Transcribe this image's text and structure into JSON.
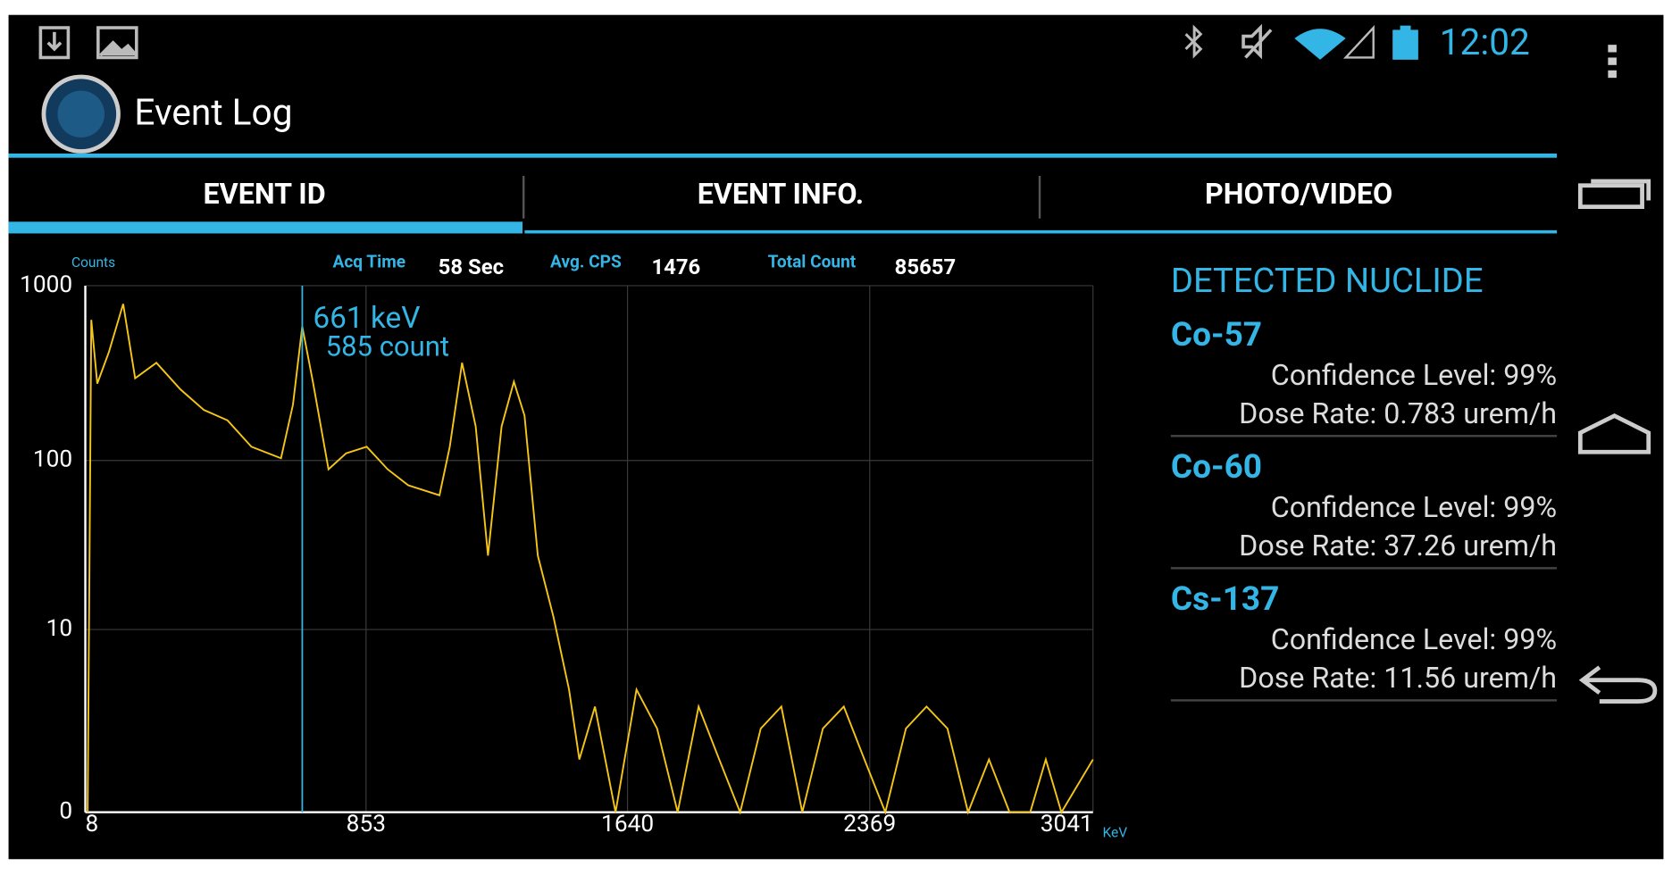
{
  "status_bar": {
    "time": "12:02"
  },
  "action_bar": {
    "title": "Event Log"
  },
  "tabs": [
    "EVENT ID",
    "EVENT INFO.",
    "PHOTO/VIDEO"
  ],
  "stats": [
    {
      "label": "Acq Time",
      "value": "58 Sec"
    },
    {
      "label": "Avg. CPS",
      "value": "1476"
    },
    {
      "label": "Total Count",
      "value": "85657"
    }
  ],
  "chart_data": {
    "type": "line",
    "y_label": "Counts",
    "x_label": "KeV",
    "x": [
      15,
      26,
      44,
      79,
      122,
      158,
      222,
      294,
      365,
      436,
      508,
      597,
      633,
      661,
      694,
      740,
      793,
      855,
      918,
      980,
      1074,
      1105,
      1142,
      1183,
      1220,
      1261,
      1298,
      1330,
      1370,
      1417,
      1464,
      1495,
      1542,
      1604,
      1667,
      1729,
      1791,
      1854,
      1916,
      1979,
      2041,
      2103,
      2166,
      2228,
      2291,
      2353,
      2416,
      2478,
      2540,
      2603,
      2665,
      2728,
      2790,
      2852,
      2899,
      2946,
      3041
    ],
    "series": [
      {
        "color": "#f5c518",
        "values": [
          0,
          638,
          276,
          418,
          787,
          296,
          363,
          256,
          195,
          170,
          120,
          103,
          209,
          585,
          276,
          89,
          110,
          120,
          89,
          72,
          63,
          120,
          363,
          157,
          28,
          157,
          283,
          181,
          28,
          12,
          4,
          1,
          3,
          0,
          4,
          2,
          0,
          3,
          1,
          0,
          2,
          3,
          0,
          2,
          3,
          1,
          0,
          2,
          3,
          2,
          0,
          1,
          0,
          0,
          1,
          0,
          1
        ]
      }
    ],
    "xlim": [
      8,
      3041
    ],
    "xticks": [
      8,
      853,
      1640,
      2369,
      3041
    ],
    "ylim": [
      0,
      1000
    ],
    "yticks": [
      0,
      10,
      100,
      1000
    ],
    "yscale": "log1p",
    "grid": true,
    "cursor": {
      "x": 661,
      "color": "#33b5e5",
      "labels": [
        "661 keV",
        "585 count"
      ]
    }
  },
  "nuclide_panel": {
    "title": "DETECTED NUCLIDE",
    "nuclides": [
      {
        "name": "Co-57",
        "confidence": "Confidence Level: 99%",
        "dose_rate": "Dose Rate: 0.783 urem/h"
      },
      {
        "name": "Co-60",
        "confidence": "Confidence Level: 99%",
        "dose_rate": "Dose Rate: 37.26 urem/h"
      },
      {
        "name": "Cs-137",
        "confidence": "Confidence Level: 99%",
        "dose_rate": "Dose Rate: 11.56 urem/h"
      }
    ]
  }
}
